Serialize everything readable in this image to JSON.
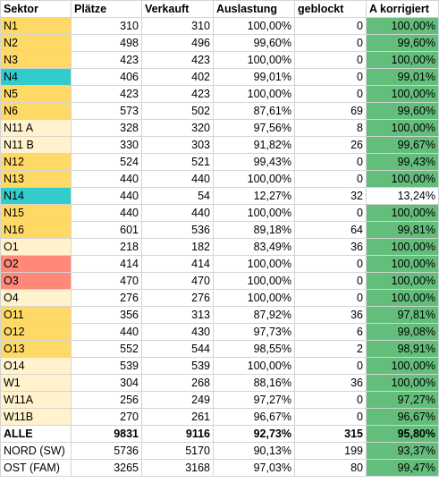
{
  "headers": [
    "Sektor",
    "Plätze",
    "Verkauft",
    "Auslastung",
    "geblockt",
    "A korrigiert"
  ],
  "colors": {
    "orange": "#ffd966",
    "teal": "#33cccc",
    "cream": "#fff2cc",
    "red": "#ff8878",
    "green": "#63be7b",
    "white": "#ffffff"
  },
  "rows": [
    {
      "sektor": "N1",
      "plaetze": "310",
      "verkauft": "310",
      "auslastung": "100,00%",
      "geblockt": "0",
      "korrigiert": "100,00%",
      "bg": "orange",
      "green": true
    },
    {
      "sektor": "N2",
      "plaetze": "498",
      "verkauft": "496",
      "auslastung": "99,60%",
      "geblockt": "0",
      "korrigiert": "99,60%",
      "bg": "orange",
      "green": true
    },
    {
      "sektor": "N3",
      "plaetze": "423",
      "verkauft": "423",
      "auslastung": "100,00%",
      "geblockt": "0",
      "korrigiert": "100,00%",
      "bg": "orange",
      "green": true
    },
    {
      "sektor": "N4",
      "plaetze": "406",
      "verkauft": "402",
      "auslastung": "99,01%",
      "geblockt": "0",
      "korrigiert": "99,01%",
      "bg": "teal",
      "green": true
    },
    {
      "sektor": "N5",
      "plaetze": "423",
      "verkauft": "423",
      "auslastung": "100,00%",
      "geblockt": "0",
      "korrigiert": "100,00%",
      "bg": "orange",
      "green": true
    },
    {
      "sektor": "N6",
      "plaetze": "573",
      "verkauft": "502",
      "auslastung": "87,61%",
      "geblockt": "69",
      "korrigiert": "99,60%",
      "bg": "orange",
      "green": true
    },
    {
      "sektor": "N11 A",
      "plaetze": "328",
      "verkauft": "320",
      "auslastung": "97,56%",
      "geblockt": "8",
      "korrigiert": "100,00%",
      "bg": "cream",
      "green": true
    },
    {
      "sektor": "N11 B",
      "plaetze": "330",
      "verkauft": "303",
      "auslastung": "91,82%",
      "geblockt": "26",
      "korrigiert": "99,67%",
      "bg": "cream",
      "green": true
    },
    {
      "sektor": "N12",
      "plaetze": "524",
      "verkauft": "521",
      "auslastung": "99,43%",
      "geblockt": "0",
      "korrigiert": "99,43%",
      "bg": "orange",
      "green": true
    },
    {
      "sektor": "N13",
      "plaetze": "440",
      "verkauft": "440",
      "auslastung": "100,00%",
      "geblockt": "0",
      "korrigiert": "100,00%",
      "bg": "orange",
      "green": true
    },
    {
      "sektor": "N14",
      "plaetze": "440",
      "verkauft": "54",
      "auslastung": "12,27%",
      "geblockt": "32",
      "korrigiert": "13,24%",
      "bg": "teal",
      "green": false
    },
    {
      "sektor": "N15",
      "plaetze": "440",
      "verkauft": "440",
      "auslastung": "100,00%",
      "geblockt": "0",
      "korrigiert": "100,00%",
      "bg": "orange",
      "green": true
    },
    {
      "sektor": "N16",
      "plaetze": "601",
      "verkauft": "536",
      "auslastung": "89,18%",
      "geblockt": "64",
      "korrigiert": "99,81%",
      "bg": "orange",
      "green": true
    },
    {
      "sektor": "O1",
      "plaetze": "218",
      "verkauft": "182",
      "auslastung": "83,49%",
      "geblockt": "36",
      "korrigiert": "100,00%",
      "bg": "cream",
      "green": true
    },
    {
      "sektor": "O2",
      "plaetze": "414",
      "verkauft": "414",
      "auslastung": "100,00%",
      "geblockt": "0",
      "korrigiert": "100,00%",
      "bg": "red",
      "green": true
    },
    {
      "sektor": "O3",
      "plaetze": "470",
      "verkauft": "470",
      "auslastung": "100,00%",
      "geblockt": "0",
      "korrigiert": "100,00%",
      "bg": "red",
      "green": true
    },
    {
      "sektor": "O4",
      "plaetze": "276",
      "verkauft": "276",
      "auslastung": "100,00%",
      "geblockt": "0",
      "korrigiert": "100,00%",
      "bg": "cream",
      "green": true
    },
    {
      "sektor": "O11",
      "plaetze": "356",
      "verkauft": "313",
      "auslastung": "87,92%",
      "geblockt": "36",
      "korrigiert": "97,81%",
      "bg": "orange",
      "green": true
    },
    {
      "sektor": "O12",
      "plaetze": "440",
      "verkauft": "430",
      "auslastung": "97,73%",
      "geblockt": "6",
      "korrigiert": "99,08%",
      "bg": "orange",
      "green": true
    },
    {
      "sektor": "O13",
      "plaetze": "552",
      "verkauft": "544",
      "auslastung": "98,55%",
      "geblockt": "2",
      "korrigiert": "98,91%",
      "bg": "orange",
      "green": true
    },
    {
      "sektor": "O14",
      "plaetze": "539",
      "verkauft": "539",
      "auslastung": "100,00%",
      "geblockt": "0",
      "korrigiert": "100,00%",
      "bg": "cream",
      "green": true
    },
    {
      "sektor": "W1",
      "plaetze": "304",
      "verkauft": "268",
      "auslastung": "88,16%",
      "geblockt": "36",
      "korrigiert": "100,00%",
      "bg": "cream",
      "green": true
    },
    {
      "sektor": "W11A",
      "plaetze": "256",
      "verkauft": "249",
      "auslastung": "97,27%",
      "geblockt": "0",
      "korrigiert": "97,27%",
      "bg": "cream",
      "green": true
    },
    {
      "sektor": "W11B",
      "plaetze": "270",
      "verkauft": "261",
      "auslastung": "96,67%",
      "geblockt": "0",
      "korrigiert": "96,67%",
      "bg": "cream",
      "green": true
    },
    {
      "sektor": "ALLE",
      "plaetze": "9831",
      "verkauft": "9116",
      "auslastung": "92,73%",
      "geblockt": "315",
      "korrigiert": "95,80%",
      "bg": "white",
      "green": true,
      "bold": true
    },
    {
      "sektor": "NORD (SW)",
      "plaetze": "5736",
      "verkauft": "5170",
      "auslastung": "90,13%",
      "geblockt": "199",
      "korrigiert": "93,37%",
      "bg": "white",
      "green": true
    },
    {
      "sektor": "OST (FAM)",
      "plaetze": "3265",
      "verkauft": "3168",
      "auslastung": "97,03%",
      "geblockt": "80",
      "korrigiert": "99,47%",
      "bg": "white",
      "green": true
    }
  ]
}
